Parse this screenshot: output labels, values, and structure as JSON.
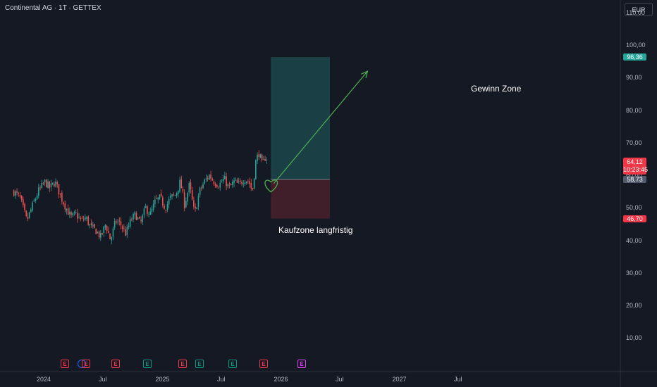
{
  "header": {
    "symbol_title": "Continental AG · 1T · GETTEX",
    "currency_button": "EUR"
  },
  "price_axis": {
    "ticks": [
      "110,00",
      "100,00",
      "90,00",
      "80,00",
      "70,00",
      "60,00",
      "50,00",
      "40,00",
      "30,00",
      "20,00",
      "10,00"
    ],
    "tick_values": [
      110,
      100,
      90,
      80,
      70,
      60,
      50,
      40,
      30,
      20,
      10
    ]
  },
  "time_axis": {
    "ticks": [
      "2024",
      "Jul",
      "2025",
      "Jul",
      "2026",
      "Jul",
      "2027",
      "Jul"
    ]
  },
  "price_badges": {
    "target": {
      "label": "96,36",
      "value": 96.36,
      "color": "#26a69a"
    },
    "current_price": {
      "label": "64,12",
      "value": 64.12,
      "color": "#f23645"
    },
    "countdown": "10:23:45",
    "entry": {
      "label": "58,73",
      "value": 58.73,
      "color": "#525a6b"
    },
    "stop": {
      "label": "46,70",
      "value": 46.7,
      "color": "#f23645"
    }
  },
  "annotations": {
    "profit_label": "Gewinn Zone",
    "entry_label": "Kaufzone langfristig"
  },
  "events": [
    {
      "type": "E",
      "color": "red"
    },
    {
      "type": "",
      "color": "blue"
    },
    {
      "type": "E",
      "color": "red"
    },
    {
      "type": "E",
      "color": "red"
    },
    {
      "type": "E",
      "color": "green"
    },
    {
      "type": "E",
      "color": "red"
    },
    {
      "type": "E",
      "color": "green"
    },
    {
      "type": "E",
      "color": "green"
    },
    {
      "type": "E",
      "color": "red"
    },
    {
      "type": "E",
      "color": "magenta"
    }
  ],
  "chart_data": {
    "type": "candlestick",
    "title": "Continental AG · 1T · GETTEX",
    "currency": "EUR",
    "ylim": [
      8,
      116
    ],
    "x_range": [
      "2023-10-01",
      "2027-10-01"
    ],
    "series_close": [
      [
        "2023-10-01",
        55
      ],
      [
        "2023-10-20",
        53
      ],
      [
        "2023-11-10",
        46
      ],
      [
        "2023-11-25",
        50
      ],
      [
        "2023-12-15",
        55
      ],
      [
        "2024-01-05",
        58
      ],
      [
        "2024-01-20",
        56
      ],
      [
        "2024-02-05",
        58
      ],
      [
        "2024-02-25",
        53
      ],
      [
        "2024-03-10",
        50
      ],
      [
        "2024-03-25",
        47
      ],
      [
        "2024-04-10",
        48
      ],
      [
        "2024-04-25",
        46
      ],
      [
        "2024-05-10",
        47
      ],
      [
        "2024-05-25",
        44
      ],
      [
        "2024-06-10",
        43
      ],
      [
        "2024-06-25",
        41
      ],
      [
        "2024-07-10",
        45
      ],
      [
        "2024-07-25",
        40
      ],
      [
        "2024-08-10",
        46
      ],
      [
        "2024-08-25",
        45
      ],
      [
        "2024-09-10",
        42
      ],
      [
        "2024-09-25",
        46
      ],
      [
        "2024-10-10",
        48
      ],
      [
        "2024-10-25",
        45
      ],
      [
        "2024-11-10",
        50
      ],
      [
        "2024-11-25",
        48
      ],
      [
        "2024-12-10",
        52
      ],
      [
        "2024-12-25",
        53
      ],
      [
        "2025-01-10",
        50
      ],
      [
        "2025-01-25",
        53
      ],
      [
        "2025-02-10",
        54
      ],
      [
        "2025-02-25",
        58
      ],
      [
        "2025-03-10",
        51
      ],
      [
        "2025-03-25",
        57
      ],
      [
        "2025-04-10",
        48
      ],
      [
        "2025-04-25",
        55
      ],
      [
        "2025-05-10",
        58
      ],
      [
        "2025-05-25",
        60
      ],
      [
        "2025-06-10",
        58
      ],
      [
        "2025-06-25",
        57
      ],
      [
        "2025-07-10",
        59
      ],
      [
        "2025-07-25",
        56
      ],
      [
        "2025-08-10",
        58
      ],
      [
        "2025-08-25",
        57
      ],
      [
        "2025-09-10",
        59
      ],
      [
        "2025-09-25",
        58
      ],
      [
        "2025-10-05",
        55
      ],
      [
        "2025-10-15",
        64
      ],
      [
        "2025-10-25",
        67
      ],
      [
        "2025-11-05",
        63
      ],
      [
        "2025-11-15",
        66
      ],
      [
        "2025-11-22",
        64
      ]
    ],
    "long_position": {
      "entry": 58.73,
      "target": 96.36,
      "stop": 46.7,
      "start": "2025-12-01",
      "end": "2026-06-01"
    },
    "arrow": {
      "from": [
        "2025-12-10",
        57.5
      ],
      "to": [
        "2026-09-25",
        92
      ]
    }
  }
}
